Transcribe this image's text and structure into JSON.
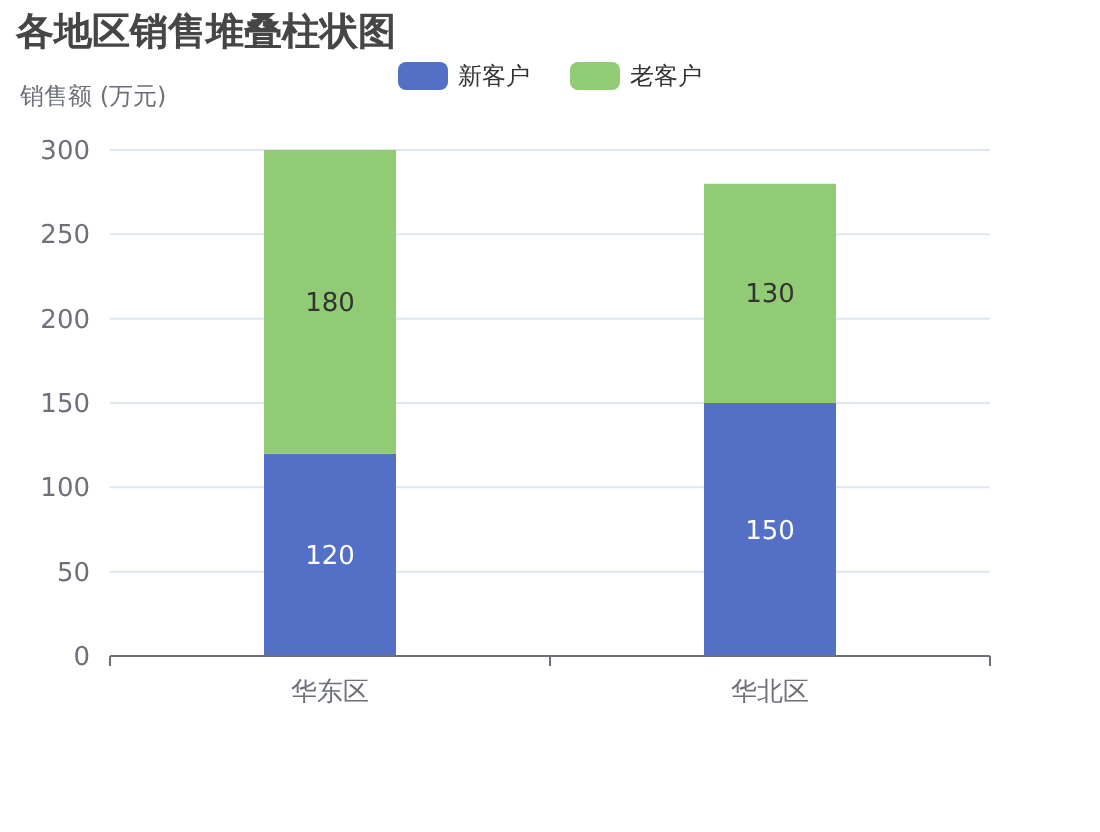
{
  "chart_data": {
    "type": "bar",
    "title": "各地区销售堆叠柱状图",
    "ylabel": "销售额 (万元)",
    "categories": [
      "华东区",
      "华北区"
    ],
    "stacked": true,
    "data_labels": true,
    "grid": "y",
    "legend": "top",
    "ylim": [
      0,
      300
    ],
    "yticks": [
      0,
      50,
      100,
      150,
      200,
      250,
      300
    ],
    "series": [
      {
        "name": "新客户",
        "color": "#5470c6",
        "values": [
          120,
          150
        ]
      },
      {
        "name": "老客户",
        "color": "#91cc75",
        "values": [
          180,
          130
        ]
      }
    ]
  }
}
